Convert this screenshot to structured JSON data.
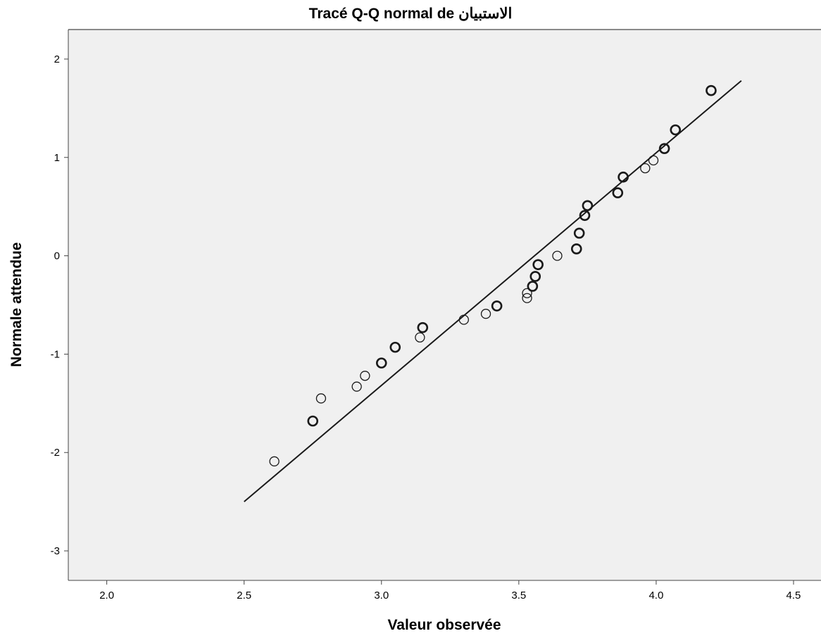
{
  "chart_data": {
    "type": "scatter",
    "title": "Tracé Q-Q normal de الاستبيان",
    "xlabel": "Valeur observée",
    "ylabel": "Normale attendue",
    "xlim": [
      1.86,
      4.6
    ],
    "ylim": [
      -3.3,
      2.3
    ],
    "xticks": [
      "2.0",
      "2.5",
      "3.0",
      "3.5",
      "4.0",
      "4.5"
    ],
    "yticks": [
      "2",
      "1",
      "0",
      "-1",
      "-2",
      "-3"
    ],
    "grid": false,
    "reference_line": {
      "x": [
        2.5,
        4.31
      ],
      "y": [
        -2.5,
        1.78
      ]
    },
    "points": [
      {
        "x": 2.61,
        "y": -2.09
      },
      {
        "x": 2.75,
        "y": -1.68
      },
      {
        "x": 2.78,
        "y": -1.45
      },
      {
        "x": 2.91,
        "y": -1.33
      },
      {
        "x": 2.94,
        "y": -1.22
      },
      {
        "x": 3.0,
        "y": -1.09
      },
      {
        "x": 3.05,
        "y": -0.93
      },
      {
        "x": 3.14,
        "y": -0.83
      },
      {
        "x": 3.15,
        "y": -0.73
      },
      {
        "x": 3.3,
        "y": -0.65
      },
      {
        "x": 3.38,
        "y": -0.59
      },
      {
        "x": 3.42,
        "y": -0.51
      },
      {
        "x": 3.53,
        "y": -0.43
      },
      {
        "x": 3.53,
        "y": -0.38
      },
      {
        "x": 3.55,
        "y": -0.31
      },
      {
        "x": 3.56,
        "y": -0.21
      },
      {
        "x": 3.57,
        "y": -0.09
      },
      {
        "x": 3.64,
        "y": 0.0
      },
      {
        "x": 3.71,
        "y": 0.07
      },
      {
        "x": 3.72,
        "y": 0.23
      },
      {
        "x": 3.74,
        "y": 0.41
      },
      {
        "x": 3.75,
        "y": 0.51
      },
      {
        "x": 3.86,
        "y": 0.64
      },
      {
        "x": 3.88,
        "y": 0.8
      },
      {
        "x": 3.96,
        "y": 0.89
      },
      {
        "x": 3.99,
        "y": 0.97
      },
      {
        "x": 4.03,
        "y": 1.09
      },
      {
        "x": 4.07,
        "y": 1.28
      },
      {
        "x": 4.2,
        "y": 1.68
      }
    ],
    "thick_points": [
      1,
      5,
      6,
      8,
      11,
      14,
      15,
      16,
      18,
      19,
      20,
      21,
      22,
      23,
      26,
      27,
      28
    ],
    "colors": {
      "plot_background": "#f0f0f0",
      "marker": "#1a1a1a",
      "line": "#1a1a1a"
    }
  }
}
